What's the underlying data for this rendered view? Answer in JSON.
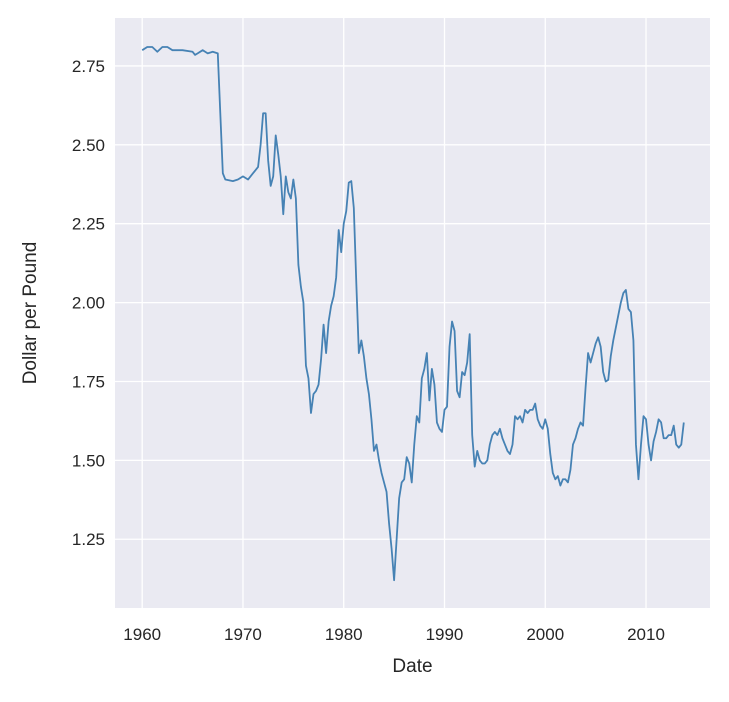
{
  "chart_data": {
    "type": "line",
    "xlabel": "Date",
    "ylabel": "Dollar per Pound",
    "x": [
      1960,
      1960.5,
      1961,
      1961.5,
      1962,
      1962.5,
      1963,
      1964,
      1965,
      1965.25,
      1965.5,
      1966,
      1966.25,
      1966.5,
      1967,
      1967.5,
      1967.75,
      1968,
      1968.25,
      1969,
      1969.5,
      1970,
      1970.5,
      1971,
      1971.5,
      1971.75,
      1972,
      1972.25,
      1972.5,
      1972.75,
      1973,
      1973.25,
      1973.5,
      1973.75,
      1974,
      1974.25,
      1974.5,
      1974.75,
      1975,
      1975.25,
      1975.5,
      1975.75,
      1976,
      1976.25,
      1976.5,
      1976.75,
      1977,
      1977.25,
      1977.5,
      1977.75,
      1978,
      1978.25,
      1978.5,
      1978.75,
      1979,
      1979.25,
      1979.5,
      1979.75,
      1980,
      1980.25,
      1980.5,
      1980.75,
      1981,
      1981.25,
      1981.5,
      1981.75,
      1982,
      1982.25,
      1982.5,
      1982.75,
      1983,
      1983.25,
      1983.5,
      1983.75,
      1984,
      1984.25,
      1984.5,
      1984.75,
      1985,
      1985.25,
      1985.5,
      1985.75,
      1986,
      1986.25,
      1986.5,
      1986.75,
      1987,
      1987.25,
      1987.5,
      1987.75,
      1988,
      1988.25,
      1988.5,
      1988.75,
      1989,
      1989.25,
      1989.5,
      1989.75,
      1990,
      1990.25,
      1990.5,
      1990.75,
      1991,
      1991.25,
      1991.5,
      1991.75,
      1992,
      1992.25,
      1992.5,
      1992.75,
      1993,
      1993.25,
      1993.5,
      1993.75,
      1994,
      1994.25,
      1994.5,
      1994.75,
      1995,
      1995.25,
      1995.5,
      1995.75,
      1996,
      1996.25,
      1996.5,
      1996.75,
      1997,
      1997.25,
      1997.5,
      1997.75,
      1998,
      1998.25,
      1998.5,
      1998.75,
      1999,
      1999.25,
      1999.5,
      1999.75,
      2000,
      2000.25,
      2000.5,
      2000.75,
      2001,
      2001.25,
      2001.5,
      2001.75,
      2002,
      2002.25,
      2002.5,
      2002.75,
      2003,
      2003.25,
      2003.5,
      2003.75,
      2004,
      2004.25,
      2004.5,
      2004.75,
      2005,
      2005.25,
      2005.5,
      2005.75,
      2006,
      2006.25,
      2006.5,
      2006.75,
      2007,
      2007.25,
      2007.5,
      2007.75,
      2008,
      2008.25,
      2008.5,
      2008.75,
      2009,
      2009.25,
      2009.5,
      2009.75,
      2010,
      2010.25,
      2010.5,
      2010.75,
      2011,
      2011.25,
      2011.5,
      2011.75,
      2012,
      2012.25,
      2012.5,
      2012.75,
      2013,
      2013.25,
      2013.5,
      2013.75
    ],
    "series": [
      {
        "color": "#4682b4",
        "values": [
          2.8,
          2.81,
          2.81,
          2.795,
          2.81,
          2.81,
          2.8,
          2.8,
          2.795,
          2.785,
          2.79,
          2.8,
          2.795,
          2.79,
          2.795,
          2.79,
          2.6,
          2.41,
          2.39,
          2.385,
          2.39,
          2.4,
          2.39,
          2.41,
          2.43,
          2.5,
          2.6,
          2.6,
          2.45,
          2.37,
          2.4,
          2.53,
          2.47,
          2.4,
          2.28,
          2.4,
          2.35,
          2.33,
          2.39,
          2.33,
          2.12,
          2.05,
          2.0,
          1.8,
          1.76,
          1.65,
          1.71,
          1.72,
          1.74,
          1.82,
          1.93,
          1.84,
          1.94,
          1.99,
          2.02,
          2.08,
          2.23,
          2.16,
          2.25,
          2.29,
          2.38,
          2.385,
          2.3,
          2.06,
          1.84,
          1.88,
          1.83,
          1.76,
          1.71,
          1.63,
          1.53,
          1.55,
          1.5,
          1.46,
          1.43,
          1.4,
          1.3,
          1.22,
          1.12,
          1.25,
          1.38,
          1.43,
          1.44,
          1.51,
          1.49,
          1.43,
          1.55,
          1.64,
          1.62,
          1.76,
          1.79,
          1.84,
          1.69,
          1.79,
          1.74,
          1.62,
          1.6,
          1.59,
          1.66,
          1.67,
          1.86,
          1.94,
          1.91,
          1.72,
          1.7,
          1.78,
          1.77,
          1.81,
          1.9,
          1.58,
          1.48,
          1.53,
          1.5,
          1.49,
          1.49,
          1.5,
          1.55,
          1.58,
          1.59,
          1.58,
          1.6,
          1.57,
          1.55,
          1.53,
          1.52,
          1.55,
          1.64,
          1.63,
          1.64,
          1.62,
          1.66,
          1.65,
          1.66,
          1.66,
          1.68,
          1.63,
          1.61,
          1.6,
          1.63,
          1.6,
          1.52,
          1.46,
          1.44,
          1.45,
          1.42,
          1.44,
          1.44,
          1.43,
          1.47,
          1.55,
          1.57,
          1.6,
          1.62,
          1.61,
          1.73,
          1.84,
          1.81,
          1.84,
          1.87,
          1.89,
          1.86,
          1.78,
          1.75,
          1.755,
          1.83,
          1.88,
          1.92,
          1.96,
          2.0,
          2.03,
          2.04,
          1.98,
          1.97,
          1.88,
          1.55,
          1.44,
          1.55,
          1.64,
          1.63,
          1.55,
          1.5,
          1.56,
          1.59,
          1.63,
          1.62,
          1.57,
          1.57,
          1.58,
          1.58,
          1.61,
          1.55,
          1.54,
          1.55,
          1.62
        ]
      }
    ],
    "xlim": [
      1957.3,
      2016.35
    ],
    "ylim": [
      1.032,
      2.902
    ],
    "xticks": [
      1960,
      1970,
      1980,
      1990,
      2000,
      2010
    ],
    "yticks": [
      1.25,
      {
        "value": 1.5,
        "label": "1.50"
      },
      1.75,
      {
        "value": 2,
        "label": "2.00"
      },
      2.25,
      {
        "value": 2.5,
        "label": "2.50"
      },
      2.75
    ],
    "grid": true
  }
}
